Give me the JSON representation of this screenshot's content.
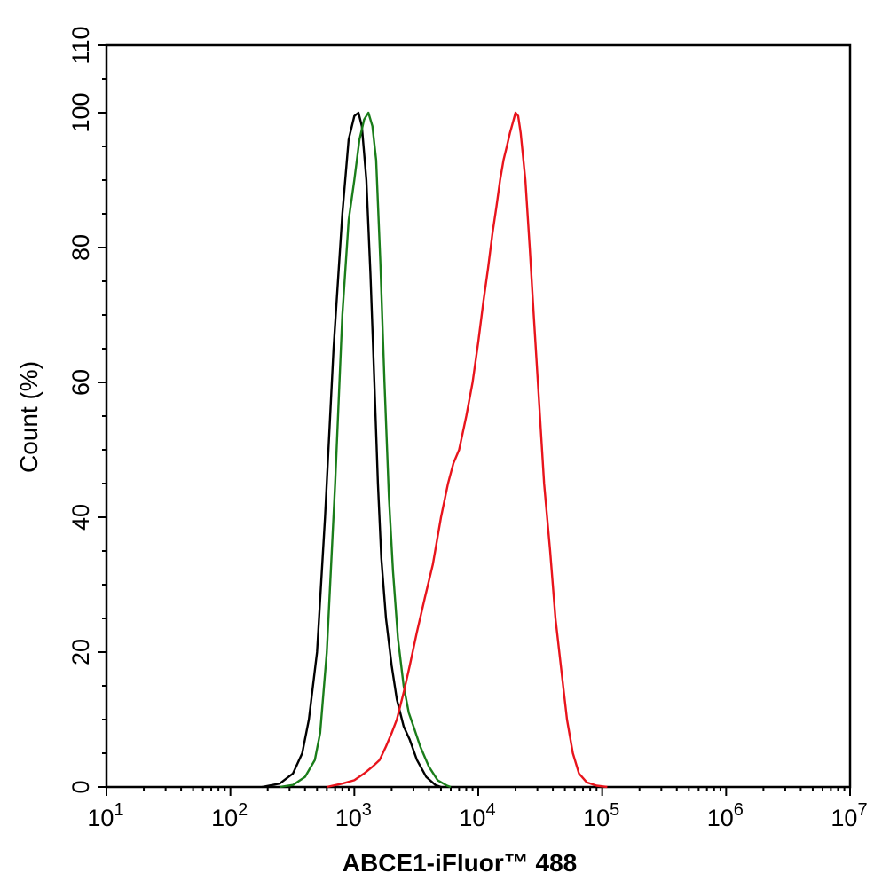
{
  "chart_data": {
    "type": "line",
    "title": "",
    "xlabel": "ABCE1-iFluor™ 488",
    "ylabel": "Count  (%)",
    "xscale": "log",
    "xlim": [
      10,
      10000000
    ],
    "ylim": [
      0,
      110
    ],
    "grid": false,
    "xticks": [
      {
        "value": 10,
        "base": "10",
        "exp": "1"
      },
      {
        "value": 100,
        "base": "10",
        "exp": "2"
      },
      {
        "value": 1000,
        "base": "10",
        "exp": "3"
      },
      {
        "value": 10000,
        "base": "10",
        "exp": "4"
      },
      {
        "value": 100000,
        "base": "10",
        "exp": "5"
      },
      {
        "value": 1000000,
        "base": "10",
        "exp": "6"
      },
      {
        "value": 10000000,
        "base": "10",
        "exp": "7"
      }
    ],
    "yticks": [
      0,
      20,
      40,
      60,
      80,
      100,
      110
    ],
    "series": [
      {
        "color": "#000000",
        "points": [
          [
            180,
            0
          ],
          [
            250,
            0.5
          ],
          [
            320,
            2
          ],
          [
            380,
            5
          ],
          [
            430,
            10
          ],
          [
            500,
            20
          ],
          [
            580,
            40
          ],
          [
            680,
            65
          ],
          [
            800,
            85
          ],
          [
            900,
            96
          ],
          [
            1000,
            99.5
          ],
          [
            1080,
            100
          ],
          [
            1150,
            98
          ],
          [
            1250,
            90
          ],
          [
            1350,
            76
          ],
          [
            1450,
            60
          ],
          [
            1550,
            45
          ],
          [
            1650,
            34
          ],
          [
            1800,
            25
          ],
          [
            2000,
            18
          ],
          [
            2200,
            13
          ],
          [
            2500,
            9
          ],
          [
            2800,
            7
          ],
          [
            3200,
            4
          ],
          [
            3800,
            1.5
          ],
          [
            4500,
            0.3
          ],
          [
            5000,
            0
          ]
        ]
      },
      {
        "color": "#1a7d1a",
        "points": [
          [
            250,
            0
          ],
          [
            320,
            0.3
          ],
          [
            400,
            1.5
          ],
          [
            480,
            4
          ],
          [
            530,
            8
          ],
          [
            600,
            20
          ],
          [
            700,
            45
          ],
          [
            800,
            70
          ],
          [
            900,
            84
          ],
          [
            1000,
            90
          ],
          [
            1100,
            96
          ],
          [
            1200,
            99
          ],
          [
            1300,
            100
          ],
          [
            1400,
            98
          ],
          [
            1500,
            93
          ],
          [
            1620,
            78
          ],
          [
            1750,
            60
          ],
          [
            1900,
            43
          ],
          [
            2050,
            32
          ],
          [
            2250,
            22
          ],
          [
            2500,
            15
          ],
          [
            2750,
            11
          ],
          [
            3000,
            9
          ],
          [
            3400,
            6
          ],
          [
            4000,
            3
          ],
          [
            4700,
            1
          ],
          [
            5600,
            0.2
          ],
          [
            6000,
            0
          ]
        ]
      },
      {
        "color": "#e8141c",
        "points": [
          [
            600,
            0
          ],
          [
            800,
            0.5
          ],
          [
            1000,
            1
          ],
          [
            1200,
            2
          ],
          [
            1400,
            3
          ],
          [
            1600,
            4
          ],
          [
            1800,
            6
          ],
          [
            2000,
            8
          ],
          [
            2200,
            10
          ],
          [
            2500,
            14
          ],
          [
            2800,
            18
          ],
          [
            3200,
            23
          ],
          [
            3700,
            28
          ],
          [
            4300,
            33
          ],
          [
            5000,
            40
          ],
          [
            5700,
            45
          ],
          [
            6300,
            48
          ],
          [
            7000,
            50
          ],
          [
            8000,
            55
          ],
          [
            9000,
            60
          ],
          [
            10000,
            66
          ],
          [
            11000,
            72
          ],
          [
            12000,
            77
          ],
          [
            13000,
            82
          ],
          [
            14000,
            86
          ],
          [
            15000,
            90
          ],
          [
            16000,
            93
          ],
          [
            17000,
            95
          ],
          [
            18000,
            97
          ],
          [
            19000,
            98.5
          ],
          [
            20000,
            100
          ],
          [
            21000,
            99.5
          ],
          [
            22000,
            97
          ],
          [
            24000,
            90
          ],
          [
            26000,
            80
          ],
          [
            28000,
            70
          ],
          [
            31000,
            57
          ],
          [
            34000,
            45
          ],
          [
            38000,
            35
          ],
          [
            42000,
            25
          ],
          [
            47000,
            17
          ],
          [
            52000,
            10
          ],
          [
            58000,
            5
          ],
          [
            65000,
            2
          ],
          [
            75000,
            0.7
          ],
          [
            90000,
            0.2
          ],
          [
            110000,
            0
          ]
        ]
      }
    ]
  }
}
